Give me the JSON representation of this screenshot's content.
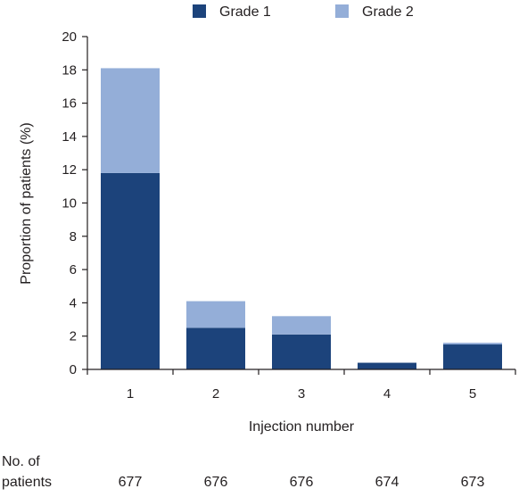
{
  "chart_data": {
    "type": "bar",
    "stacked": true,
    "categories": [
      "1",
      "2",
      "3",
      "4",
      "5"
    ],
    "series": [
      {
        "name": "Grade 1",
        "color": "#1c437b",
        "values": [
          11.8,
          2.5,
          2.1,
          0.4,
          1.5
        ]
      },
      {
        "name": "Grade 2",
        "color": "#94aed8",
        "values": [
          6.3,
          1.6,
          1.1,
          0.0,
          0.1
        ]
      }
    ],
    "xlabel": "Injection number",
    "ylabel": "Proportion of patients (%)",
    "ylim": [
      0,
      20
    ],
    "yticks": [
      0,
      2,
      4,
      6,
      8,
      10,
      12,
      14,
      16,
      18,
      20
    ],
    "grid": false,
    "legend": "top"
  },
  "patients_row": {
    "label_line1": "No. of",
    "label_line2": "patients",
    "counts": [
      "677",
      "676",
      "676",
      "674",
      "673"
    ]
  },
  "colors": {
    "axis": "#231f20"
  }
}
